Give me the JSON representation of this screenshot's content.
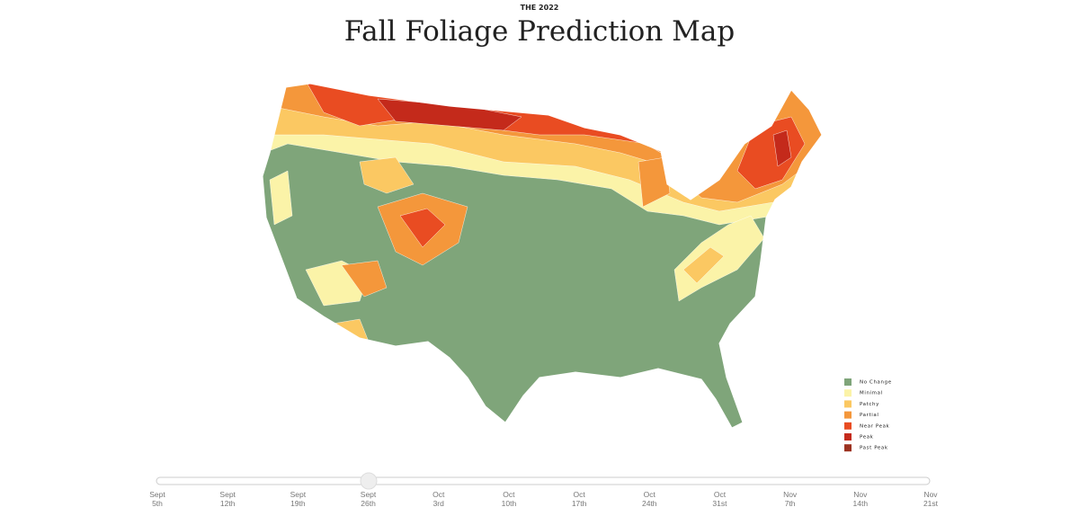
{
  "header": {
    "kicker": "THE 2022",
    "title": "Fall Foliage Prediction Map"
  },
  "legend": [
    {
      "label": "No Change",
      "color": "#7fa57a"
    },
    {
      "label": "Minimal",
      "color": "#fbf3a8"
    },
    {
      "label": "Patchy",
      "color": "#fbc862"
    },
    {
      "label": "Partial",
      "color": "#f4973b"
    },
    {
      "label": "Near Peak",
      "color": "#e94c22"
    },
    {
      "label": "Peak",
      "color": "#c42a1b"
    },
    {
      "label": "Past Peak",
      "color": "#9c3220"
    }
  ],
  "timeline": [
    {
      "month": "Sept",
      "day": "5th"
    },
    {
      "month": "Sept",
      "day": "12th"
    },
    {
      "month": "Sept",
      "day": "19th"
    },
    {
      "month": "Sept",
      "day": "26th"
    },
    {
      "month": "Oct",
      "day": "3rd"
    },
    {
      "month": "Oct",
      "day": "10th"
    },
    {
      "month": "Oct",
      "day": "17th"
    },
    {
      "month": "Oct",
      "day": "24th"
    },
    {
      "month": "Oct",
      "day": "31st"
    },
    {
      "month": "Nov",
      "day": "7th"
    },
    {
      "month": "Nov",
      "day": "14th"
    },
    {
      "month": "Nov",
      "day": "21st"
    }
  ]
}
